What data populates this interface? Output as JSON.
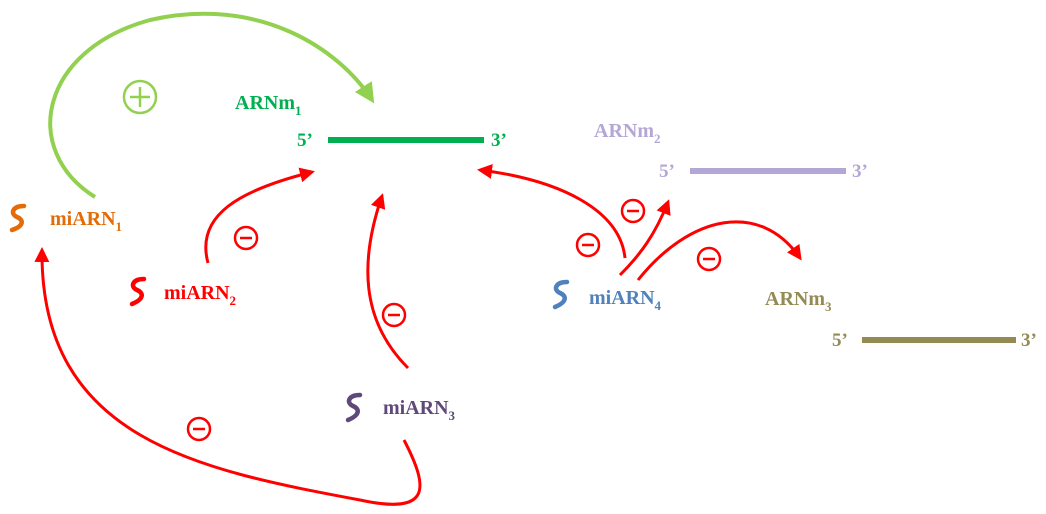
{
  "colors": {
    "arnm1": "#00b050",
    "arnm2": "#b4a7d6",
    "arnm3": "#948a54",
    "mirna1": "#e36c09",
    "mirna2": "#ff0000",
    "mirna3": "#5f497a",
    "mirna4": "#4f81bd",
    "inhibition": "#ff0000",
    "activation": "#92d050"
  },
  "mrnas": [
    {
      "id": "arnm1",
      "name": "ARNm",
      "index": "1",
      "five_prime": "5’",
      "three_prime": "3’"
    },
    {
      "id": "arnm2",
      "name": "ARNm",
      "index": "2",
      "five_prime": "5’",
      "three_prime": "3’"
    },
    {
      "id": "arnm3",
      "name": "ARNm",
      "index": "3",
      "five_prime": "5’",
      "three_prime": "3’"
    }
  ],
  "mirnas": [
    {
      "id": "mirna1",
      "name": "miARN",
      "index": "1",
      "icon": "squiggle-icon"
    },
    {
      "id": "mirna2",
      "name": "miARN",
      "index": "2",
      "icon": "squiggle-icon"
    },
    {
      "id": "mirna3",
      "name": "miARN",
      "index": "3",
      "icon": "squiggle-icon"
    },
    {
      "id": "mirna4",
      "name": "miARN",
      "index": "4",
      "icon": "squiggle-icon"
    }
  ],
  "interactions": [
    {
      "from": "mirna1",
      "to": "arnm1",
      "effect": "activation",
      "symbol": "+"
    },
    {
      "from": "mirna2",
      "to": "arnm1",
      "effect": "inhibition",
      "symbol": "−"
    },
    {
      "from": "mirna3",
      "to": "arnm1",
      "effect": "inhibition",
      "symbol": "−"
    },
    {
      "from": "mirna3",
      "to": "mirna1",
      "effect": "inhibition",
      "symbol": "−"
    },
    {
      "from": "mirna4",
      "to": "arnm1",
      "effect": "inhibition",
      "symbol": "−"
    },
    {
      "from": "mirna4",
      "to": "arnm2",
      "effect": "inhibition",
      "symbol": "−"
    },
    {
      "from": "mirna4",
      "to": "arnm3",
      "effect": "inhibition",
      "symbol": "−"
    }
  ]
}
